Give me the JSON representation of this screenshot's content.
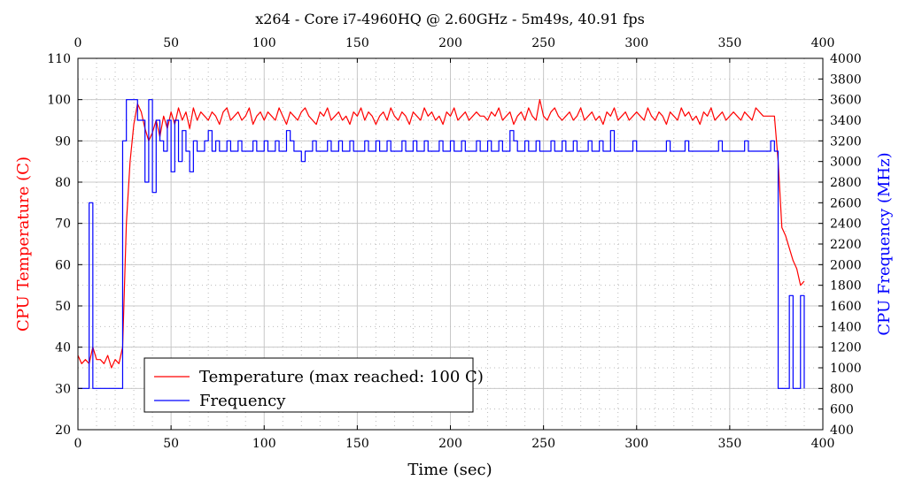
{
  "chart_data": {
    "type": "line",
    "title": "x264 - Core i7-4960HQ @ 2.60GHz - 5m49s, 40.91 fps",
    "xlabel": "Time (sec)",
    "ylabel_left": "CPU Temperature (C)",
    "ylabel_right": "CPU Frequency (MHz)",
    "xlim": [
      0,
      400
    ],
    "ylim_left": [
      20,
      110
    ],
    "ylim_right": [
      400,
      4000
    ],
    "x_ticks": [
      0,
      50,
      100,
      150,
      200,
      250,
      300,
      350,
      400
    ],
    "y_ticks_left": [
      20,
      30,
      40,
      50,
      60,
      70,
      80,
      90,
      100,
      110
    ],
    "y_ticks_right": [
      400,
      600,
      800,
      1000,
      1200,
      1400,
      1600,
      1800,
      2000,
      2200,
      2400,
      2600,
      2800,
      3000,
      3200,
      3400,
      3600,
      3800,
      4000
    ],
    "grid": true,
    "legend_position": "bottom-left",
    "colors": {
      "temperature": "#ff0000",
      "frequency": "#0000ff"
    },
    "x_start": 0,
    "x_step": 2,
    "series": [
      {
        "name": "Temperature (max reached: 100 C)",
        "axis": "left",
        "values": [
          38,
          36,
          37,
          36,
          40,
          37,
          37,
          36,
          38,
          35,
          37,
          36,
          40,
          70,
          85,
          94,
          99,
          97,
          93,
          90,
          92,
          95,
          91,
          96,
          93,
          97,
          94,
          98,
          95,
          97,
          93,
          98,
          95,
          97,
          96,
          95,
          97,
          96,
          94,
          97,
          98,
          95,
          96,
          97,
          95,
          96,
          98,
          94,
          96,
          97,
          95,
          97,
          96,
          95,
          98,
          96,
          94,
          97,
          96,
          95,
          97,
          98,
          96,
          95,
          94,
          97,
          96,
          98,
          95,
          96,
          97,
          95,
          96,
          94,
          97,
          96,
          98,
          95,
          97,
          96,
          94,
          96,
          97,
          95,
          98,
          96,
          95,
          97,
          96,
          94,
          97,
          96,
          95,
          98,
          96,
          97,
          95,
          96,
          94,
          97,
          96,
          98,
          95,
          96,
          97,
          95,
          96,
          97,
          96,
          96,
          95,
          97,
          96,
          98,
          95,
          96,
          97,
          94,
          96,
          97,
          95,
          98,
          96,
          95,
          100,
          96,
          95,
          97,
          98,
          96,
          95,
          96,
          97,
          95,
          96,
          98,
          95,
          96,
          97,
          95,
          96,
          94,
          97,
          96,
          98,
          95,
          96,
          97,
          95,
          96,
          97,
          96,
          95,
          98,
          96,
          95,
          97,
          96,
          94,
          97,
          96,
          95,
          98,
          96,
          97,
          95,
          96,
          94,
          97,
          96,
          98,
          95,
          96,
          97,
          95,
          96,
          97,
          96,
          95,
          97,
          96,
          95,
          98,
          97,
          96,
          96,
          96,
          96,
          85,
          69,
          67,
          64,
          61,
          59,
          55,
          56
        ]
      },
      {
        "name": "Frequency",
        "axis": "right",
        "values": [
          800,
          800,
          800,
          2600,
          800,
          800,
          800,
          800,
          800,
          800,
          800,
          800,
          3200,
          3600,
          3600,
          3600,
          3400,
          3400,
          2800,
          3600,
          2700,
          3400,
          3200,
          3100,
          3400,
          2900,
          3400,
          3000,
          3300,
          3100,
          2900,
          3200,
          3100,
          3100,
          3200,
          3300,
          3100,
          3200,
          3100,
          3100,
          3200,
          3100,
          3100,
          3200,
          3100,
          3100,
          3100,
          3200,
          3100,
          3100,
          3200,
          3100,
          3100,
          3200,
          3100,
          3100,
          3300,
          3200,
          3100,
          3100,
          3000,
          3100,
          3100,
          3200,
          3100,
          3100,
          3100,
          3200,
          3100,
          3100,
          3200,
          3100,
          3100,
          3200,
          3100,
          3100,
          3100,
          3200,
          3100,
          3100,
          3200,
          3100,
          3100,
          3200,
          3100,
          3100,
          3100,
          3200,
          3100,
          3100,
          3200,
          3100,
          3100,
          3200,
          3100,
          3100,
          3100,
          3200,
          3100,
          3100,
          3200,
          3100,
          3100,
          3200,
          3100,
          3100,
          3100,
          3200,
          3100,
          3100,
          3200,
          3100,
          3100,
          3200,
          3100,
          3100,
          3300,
          3200,
          3100,
          3100,
          3200,
          3100,
          3100,
          3200,
          3100,
          3100,
          3100,
          3200,
          3100,
          3100,
          3200,
          3100,
          3100,
          3200,
          3100,
          3100,
          3100,
          3200,
          3100,
          3100,
          3200,
          3100,
          3100,
          3300,
          3100,
          3100,
          3100,
          3100,
          3100,
          3200,
          3100,
          3100,
          3100,
          3100,
          3100,
          3100,
          3100,
          3100,
          3200,
          3100,
          3100,
          3100,
          3100,
          3200,
          3100,
          3100,
          3100,
          3100,
          3100,
          3100,
          3100,
          3100,
          3200,
          3100,
          3100,
          3100,
          3100,
          3100,
          3100,
          3200,
          3100,
          3100,
          3100,
          3100,
          3100,
          3100,
          3200,
          3100,
          800,
          800,
          800,
          1700,
          800,
          800,
          1700,
          800
        ]
      }
    ]
  }
}
